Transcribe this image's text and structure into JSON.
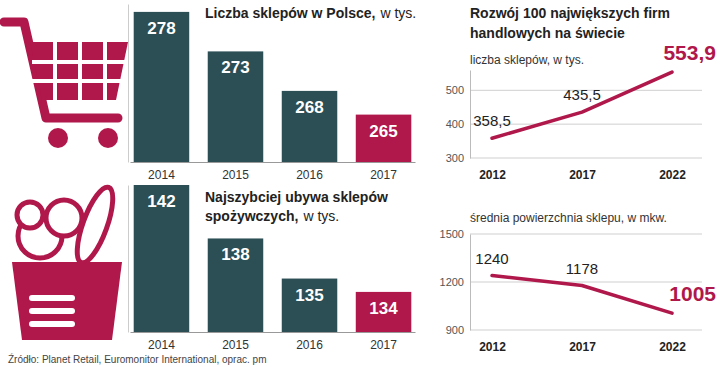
{
  "source": "Źródło: Planet Retail, Euromonitor International, oprac. pm",
  "chart_data": [
    {
      "type": "bar",
      "title": "Liczba sklepów w Polsce,",
      "subtitle": "w tys.",
      "categories": [
        "2014",
        "2015",
        "2016",
        "2017"
      ],
      "values": [
        278,
        273,
        268,
        265
      ],
      "colors": [
        "#2c4f55",
        "#2c4f55",
        "#2c4f55",
        "#b0174a"
      ],
      "ylim": [
        259,
        279
      ],
      "data_labels": true,
      "tick_labels": "x"
    },
    {
      "type": "bar",
      "title": "Najszybciej ubywa sklepów spożywczych,",
      "subtitle": "w tys.",
      "categories": [
        "2014",
        "2015",
        "2016",
        "2017"
      ],
      "values": [
        142,
        138,
        135,
        134
      ],
      "colors": [
        "#2c4f55",
        "#2c4f55",
        "#2c4f55",
        "#b0174a"
      ],
      "ylim": [
        131,
        142
      ],
      "data_labels": true,
      "tick_labels": "x"
    },
    {
      "type": "line",
      "title": "Rozwój 100 największych firm handlowych na świecie",
      "subtitle": "liczba sklepów, w tys.",
      "categories": [
        "2012",
        "2017",
        "2022"
      ],
      "values": [
        358.5,
        435.5,
        553.9
      ],
      "value_labels": [
        "358,5",
        "435,5",
        "553,9"
      ],
      "color": "#b0174a",
      "ylim": [
        300,
        560
      ],
      "yticks": [
        300,
        400,
        500
      ],
      "grid": true,
      "data_labels": true
    },
    {
      "type": "line",
      "subtitle": "średnia powierzchnia sklepu, w mkw.",
      "categories": [
        "2012",
        "2017",
        "2022"
      ],
      "values": [
        1240,
        1178,
        1005
      ],
      "color": "#b0174a",
      "ylim": [
        900,
        1500
      ],
      "yticks": [
        900,
        1200,
        1500
      ],
      "grid": true,
      "data_labels": true
    }
  ]
}
